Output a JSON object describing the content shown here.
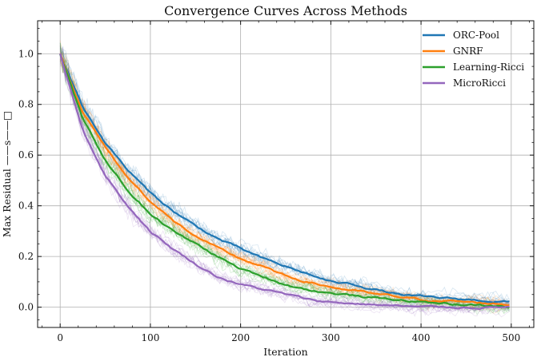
{
  "chart_data": {
    "type": "line",
    "title": "Convergence Curves Across Methods",
    "xlabel": "Iteration",
    "ylabel": "Max Residual ——s——□",
    "xlim": [
      -25,
      525
    ],
    "ylim": [
      -0.08,
      1.13
    ],
    "xticks": [
      0,
      100,
      200,
      300,
      400,
      500
    ],
    "yticks": [
      0.0,
      0.2,
      0.4,
      0.6,
      0.8,
      1.0
    ],
    "xtick_labels": [
      "0",
      "100",
      "200",
      "300",
      "400",
      "500"
    ],
    "ytick_labels": [
      "0.0",
      "0.2",
      "0.4",
      "0.6",
      "0.8",
      "1.0"
    ],
    "grid": true,
    "legend_position": "top-right",
    "x": [
      0,
      25,
      50,
      75,
      100,
      125,
      150,
      175,
      200,
      225,
      250,
      275,
      300,
      325,
      350,
      375,
      400,
      425,
      450,
      475,
      500
    ],
    "series": [
      {
        "name": "ORC-Pool",
        "color": "#1f77b4",
        "values": [
          1.0,
          0.79,
          0.65,
          0.54,
          0.45,
          0.38,
          0.32,
          0.27,
          0.23,
          0.19,
          0.16,
          0.13,
          0.1,
          0.09,
          0.07,
          0.05,
          0.04,
          0.035,
          0.03,
          0.025,
          0.02
        ]
      },
      {
        "name": "GNRF",
        "color": "#ff7f0e",
        "values": [
          1.0,
          0.77,
          0.63,
          0.51,
          0.42,
          0.34,
          0.28,
          0.23,
          0.19,
          0.16,
          0.12,
          0.1,
          0.08,
          0.065,
          0.05,
          0.04,
          0.03,
          0.025,
          0.02,
          0.015,
          0.01
        ]
      },
      {
        "name": "Learning-Ricci",
        "color": "#2ca02c",
        "values": [
          1.0,
          0.74,
          0.58,
          0.46,
          0.37,
          0.3,
          0.25,
          0.2,
          0.15,
          0.12,
          0.09,
          0.07,
          0.055,
          0.045,
          0.035,
          0.03,
          0.02,
          0.015,
          0.01,
          0.005,
          0.0
        ]
      },
      {
        "name": "MicroRicci",
        "color": "#9467bd",
        "values": [
          1.0,
          0.7,
          0.52,
          0.4,
          0.3,
          0.23,
          0.17,
          0.12,
          0.09,
          0.07,
          0.05,
          0.03,
          0.02,
          0.015,
          0.01,
          0.005,
          0.0,
          0.0,
          0.0,
          0.0,
          0.0
        ]
      }
    ]
  }
}
